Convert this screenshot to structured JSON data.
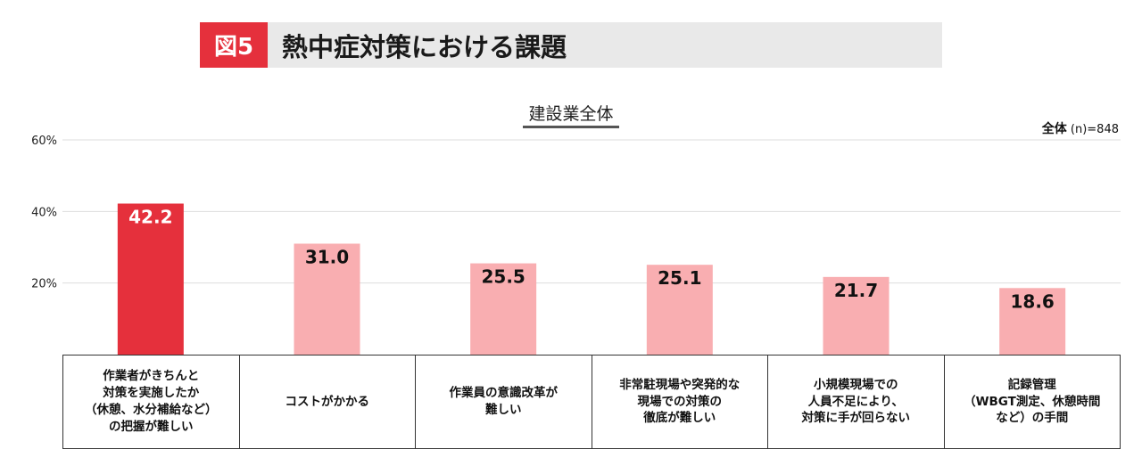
{
  "header": {
    "figure_label": "図5",
    "title": "熱中症対策における課題"
  },
  "sample": {
    "label": "全体",
    "n": "(n)=848"
  },
  "colors": {
    "highlight": "#e5303c",
    "bar": "#f9aeb1",
    "grid": "#dddddd",
    "badge": "#e5303c"
  },
  "chart_data": {
    "type": "bar",
    "title": "建設業全体",
    "categories": [
      "作業者がきちんと\n対策を実施したか\n（休憩、水分補給など）\nの把握が難しい",
      "コストがかかる",
      "作業員の意識改革が\n難しい",
      "非常駐現場や突発的な\n現場での対策の\n徹底が難しい",
      "小規模現場での\n人員不足により、\n対策に手が回らない",
      "記録管理\n（WBGT測定、休憩時間\nなど）の手間"
    ],
    "values": [
      42.2,
      31.0,
      25.5,
      25.1,
      21.7,
      18.6
    ],
    "value_labels": [
      "42.2",
      "31.0",
      "25.5",
      "25.1",
      "21.7",
      "18.6"
    ],
    "ylim": [
      0,
      60
    ],
    "yticks": [
      20,
      40,
      60
    ],
    "ytick_labels": [
      "20%",
      "40%",
      "60%"
    ],
    "highlight_index": 0,
    "grid": true
  }
}
